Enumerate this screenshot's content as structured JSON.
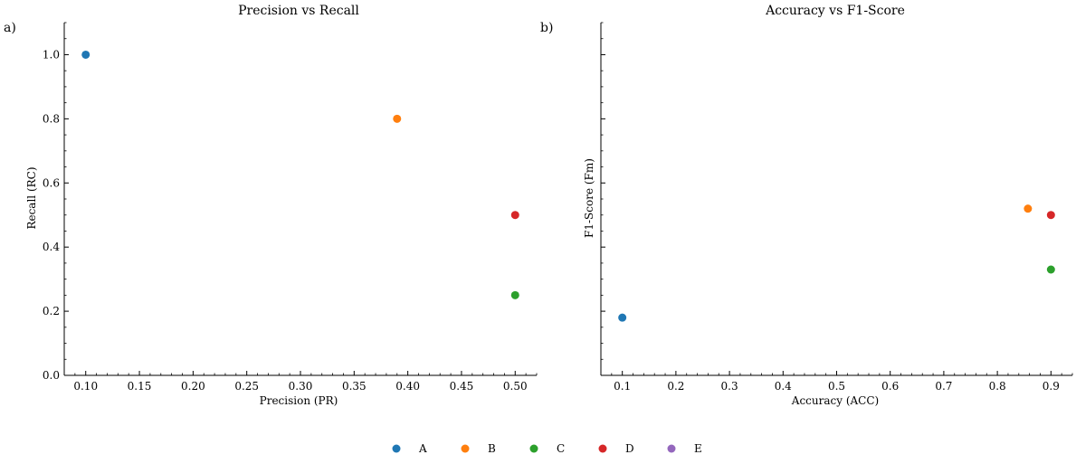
{
  "chart_data": [
    {
      "type": "scatter",
      "panel_label": "a)",
      "title": "Precision vs Recall",
      "xlabel": "Precision (PR)",
      "ylabel": "Recall (RC)",
      "xlim": [
        0.08,
        0.52
      ],
      "ylim": [
        0.0,
        1.1
      ],
      "xticks": [
        0.1,
        0.15,
        0.2,
        0.25,
        0.3,
        0.35,
        0.4,
        0.45,
        0.5
      ],
      "xtick_labels": [
        "0.10",
        "0.15",
        "0.20",
        "0.25",
        "0.30",
        "0.35",
        "0.40",
        "0.45",
        "0.50"
      ],
      "yticks": [
        0.0,
        0.2,
        0.4,
        0.6,
        0.8,
        1.0
      ],
      "ytick_labels": [
        "0.0",
        "0.2",
        "0.4",
        "0.6",
        "0.8",
        "1.0"
      ],
      "show_ytick_labels": true,
      "points": [
        {
          "series": "A",
          "x": 0.1,
          "y": 1.0
        },
        {
          "series": "B",
          "x": 0.39,
          "y": 0.8
        },
        {
          "series": "D",
          "x": 0.5,
          "y": 0.5
        },
        {
          "series": "C",
          "x": 0.5,
          "y": 0.25
        }
      ]
    },
    {
      "type": "scatter",
      "panel_label": "b)",
      "title": "Accuracy vs F1-Score",
      "xlabel": "Accuracy (ACC)",
      "ylabel": "F1-Score (Fm)",
      "xlim": [
        0.06,
        0.94
      ],
      "ylim": [
        0.0,
        1.1
      ],
      "xticks": [
        0.1,
        0.2,
        0.3,
        0.4,
        0.5,
        0.6,
        0.7,
        0.8,
        0.9
      ],
      "xtick_labels": [
        "0.1",
        "0.2",
        "0.3",
        "0.4",
        "0.5",
        "0.6",
        "0.7",
        "0.8",
        "0.9"
      ],
      "yticks": [
        0.0,
        0.2,
        0.4,
        0.6,
        0.8,
        1.0
      ],
      "ytick_labels": [
        "",
        "",
        "",
        "",
        "",
        ""
      ],
      "show_ytick_labels": false,
      "points": [
        {
          "series": "A",
          "x": 0.1,
          "y": 0.18
        },
        {
          "series": "B",
          "x": 0.857,
          "y": 0.52
        },
        {
          "series": "D",
          "x": 0.9,
          "y": 0.5
        },
        {
          "series": "C",
          "x": 0.9,
          "y": 0.33
        }
      ]
    }
  ],
  "legend": {
    "placement": "bottom-center",
    "entries": [
      {
        "name": "A",
        "color": "#1f77b4"
      },
      {
        "name": "B",
        "color": "#ff7f0e"
      },
      {
        "name": "C",
        "color": "#2ca02c"
      },
      {
        "name": "D",
        "color": "#d62728"
      },
      {
        "name": "E",
        "color": "#9467bd"
      }
    ]
  }
}
